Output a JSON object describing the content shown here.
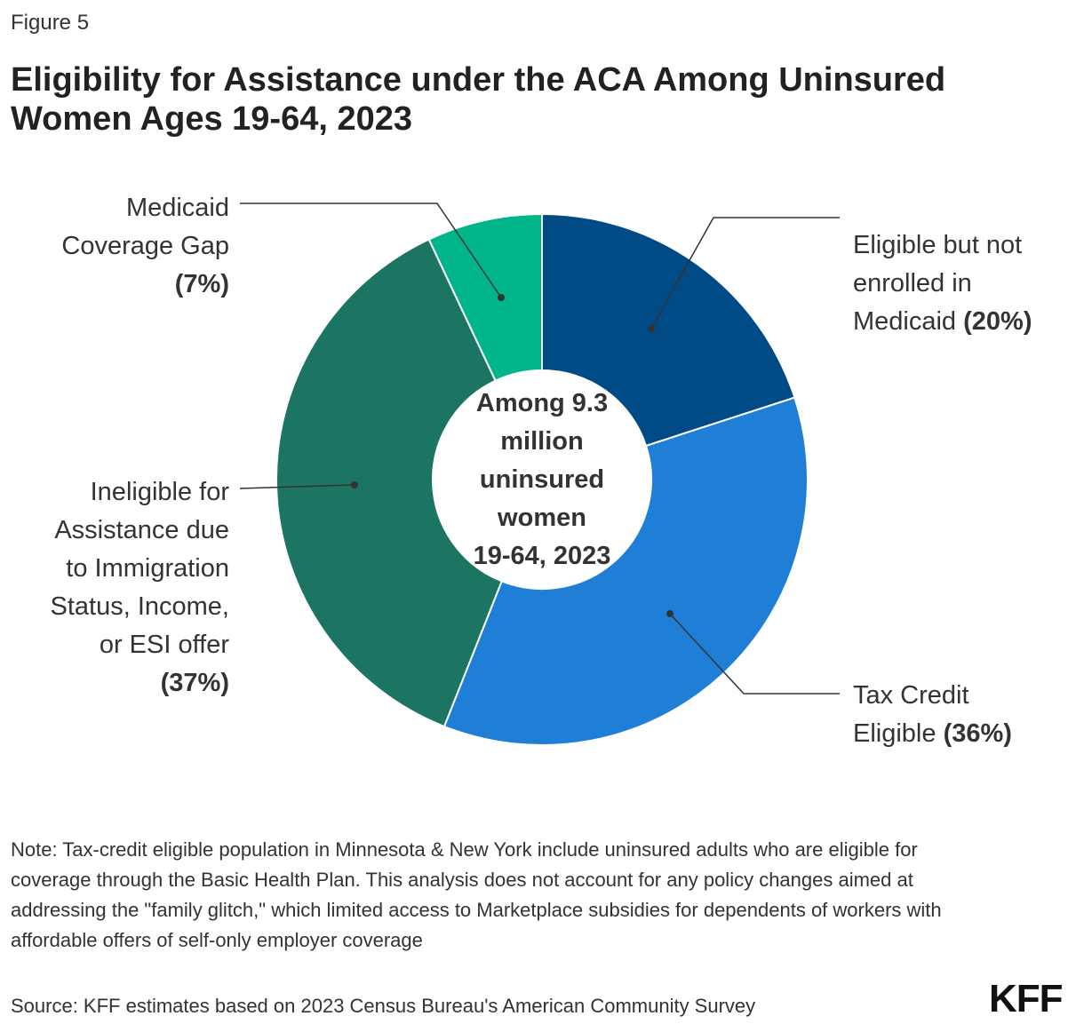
{
  "figure_label": "Figure 5",
  "title": "Eligibility for Assistance under the ACA Among Uninsured Women Ages 19-64, 2023",
  "chart_data": {
    "type": "pie",
    "variant": "donut",
    "center_label": [
      "Among 9.3",
      "million",
      "uninsured",
      "women",
      "19-64, 2023"
    ],
    "slices": [
      {
        "name": "Eligible but not enrolled in Medicaid",
        "value": 20,
        "color": "#004A85",
        "label_lines": [
          "Eligible but not",
          "enrolled in",
          "Medicaid"
        ],
        "value_text": "(20%)"
      },
      {
        "name": "Tax Credit Eligible",
        "value": 36,
        "color": "#1F7FD6",
        "label_lines": [
          "Tax Credit",
          "Eligible"
        ],
        "value_text": "(36%)"
      },
      {
        "name": "Ineligible for Assistance due to Immigration Status, Income, or ESI offer",
        "value": 37,
        "color": "#1B7562",
        "label_lines": [
          "Ineligible for",
          "Assistance due",
          "to Immigration",
          "Status, Income,",
          "or ESI offer"
        ],
        "value_text": "(37%)"
      },
      {
        "name": "Medicaid Coverage Gap",
        "value": 7,
        "color": "#00B58A",
        "label_lines": [
          "Medicaid",
          "Coverage Gap"
        ],
        "value_text": "(7%)"
      }
    ]
  },
  "note": "Note: Tax-credit eligible population in Minnesota & New York include uninsured adults who are eligible for coverage through the Basic Health Plan. This analysis does not account for any policy changes aimed at addressing the \"family glitch,\" which limited access to Marketplace subsidies for dependents of workers with affordable offers of self-only employer coverage",
  "source": "Source: KFF estimates based on 2023 Census Bureau's American Community Survey",
  "logo_text": "KFF"
}
